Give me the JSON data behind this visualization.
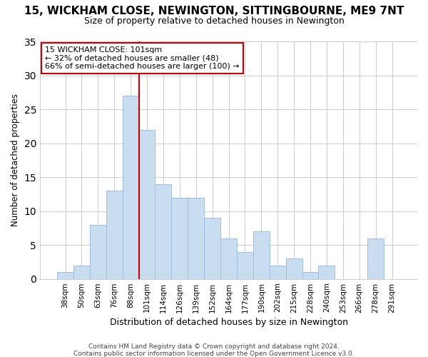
{
  "title": "15, WICKHAM CLOSE, NEWINGTON, SITTINGBOURNE, ME9 7NT",
  "subtitle": "Size of property relative to detached houses in Newington",
  "xlabel": "Distribution of detached houses by size in Newington",
  "ylabel": "Number of detached properties",
  "bar_labels": [
    "38sqm",
    "50sqm",
    "63sqm",
    "76sqm",
    "88sqm",
    "101sqm",
    "114sqm",
    "126sqm",
    "139sqm",
    "152sqm",
    "164sqm",
    "177sqm",
    "190sqm",
    "202sqm",
    "215sqm",
    "228sqm",
    "240sqm",
    "253sqm",
    "266sqm",
    "278sqm",
    "291sqm"
  ],
  "bar_values": [
    1,
    2,
    8,
    13,
    27,
    22,
    14,
    12,
    12,
    9,
    6,
    4,
    7,
    2,
    3,
    1,
    2,
    0,
    0,
    6,
    0
  ],
  "bar_color": "#c9ddf0",
  "bar_edge_color": "#a0bee0",
  "vline_between": [
    4,
    5
  ],
  "vline_color": "#cc0000",
  "annotation_text": "15 WICKHAM CLOSE: 101sqm\n← 32% of detached houses are smaller (48)\n66% of semi-detached houses are larger (100) →",
  "annotation_box_color": "#ffffff",
  "annotation_box_edge": "#cc0000",
  "ylim": [
    0,
    35
  ],
  "yticks": [
    0,
    5,
    10,
    15,
    20,
    25,
    30,
    35
  ],
  "footer1": "Contains HM Land Registry data © Crown copyright and database right 2024.",
  "footer2": "Contains public sector information licensed under the Open Government Licence v3.0.",
  "background_color": "#ffffff",
  "grid_color": "#cccccc",
  "title_fontsize": 11,
  "subtitle_fontsize": 9,
  "ylabel_fontsize": 8.5,
  "xlabel_fontsize": 9
}
